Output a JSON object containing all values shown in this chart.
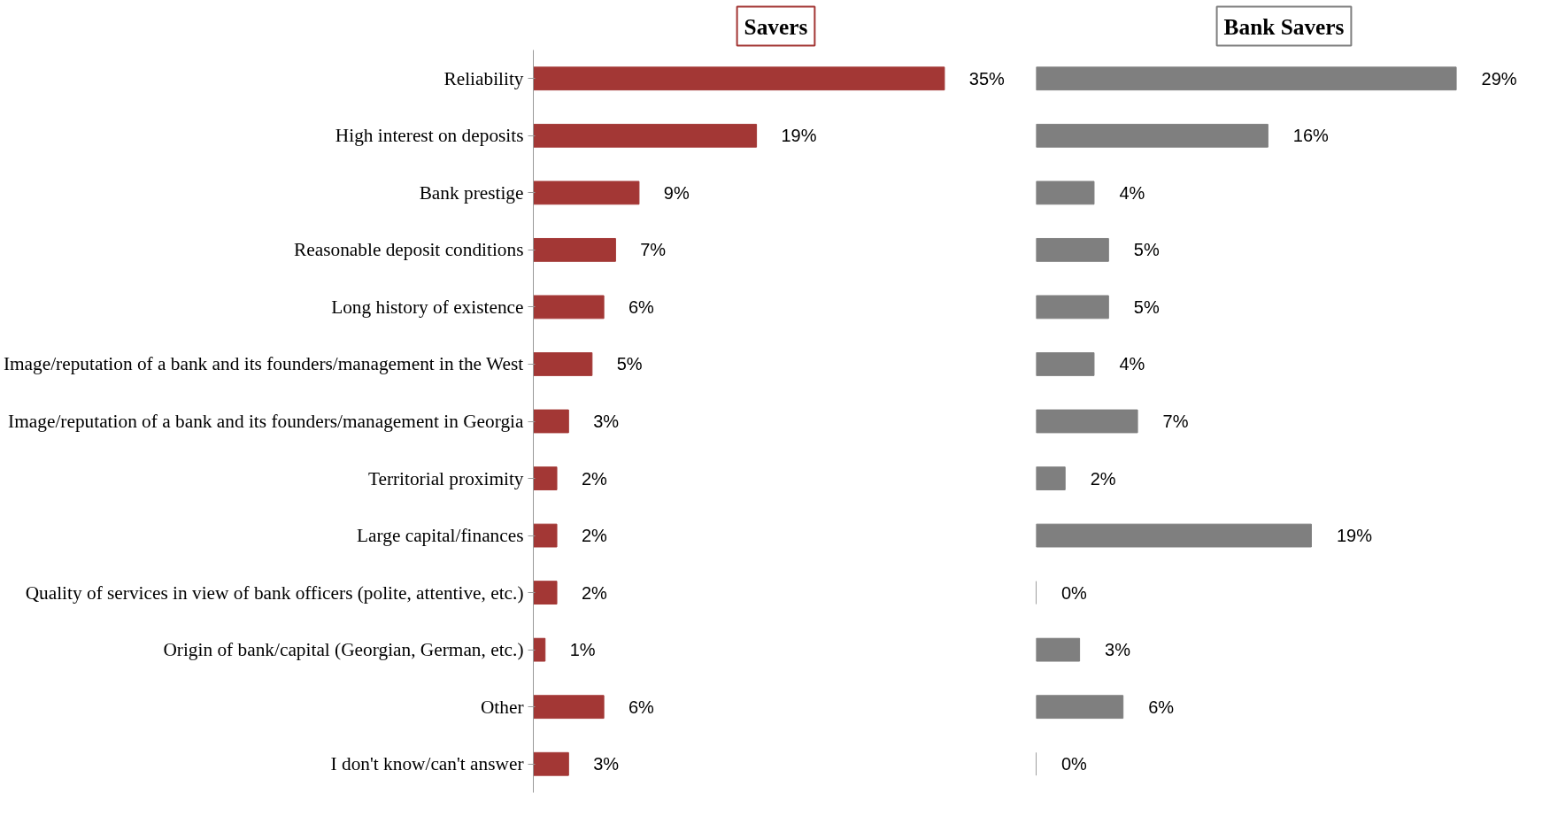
{
  "chart_data": [
    {
      "type": "bar",
      "orientation": "horizontal",
      "title": "Savers",
      "tick_labels": "y",
      "categories": [
        "Reliability",
        "High interest on deposits",
        "Bank prestige",
        "Reasonable deposit conditions",
        "Long history of existence",
        "Image/reputation of a bank and its founders/management in the West",
        "Image/reputation of a bank and its founders/management in Georgia",
        "Territorial proximity",
        "Large capital/finances",
        "Quality of services in view of bank officers (polite, attentive, etc.)",
        "Origin of bank/capital (Georgian, German, etc.)",
        "Other",
        "I don't know/can't answer"
      ],
      "series": [
        {
          "color": "#a33735",
          "values": [
            35,
            19,
            9,
            7,
            6,
            5,
            3,
            2,
            2,
            2,
            1,
            6,
            3
          ],
          "value_labels": [
            "35%",
            "19%",
            "9%",
            "7%",
            "6%",
            "5%",
            "3%",
            "2%",
            "2%",
            "2%",
            "1%",
            "6%",
            "3%"
          ]
        }
      ]
    },
    {
      "type": "bar",
      "orientation": "horizontal",
      "title": "Bank Savers",
      "tick_labels": false,
      "categories": [
        null,
        null,
        null,
        null,
        null,
        null,
        null,
        null,
        null,
        null,
        null,
        null,
        null
      ],
      "series": [
        {
          "color": "#7f7f7f",
          "values": [
            29,
            16,
            4,
            5,
            5,
            4,
            7,
            2,
            19,
            0,
            3,
            6,
            0
          ],
          "value_labels": [
            "29%",
            "16%",
            "4%",
            "5%",
            "5%",
            "4%",
            "7%",
            "2%",
            "19%",
            "0%",
            "3%",
            "6%",
            "0%"
          ]
        }
      ]
    }
  ]
}
